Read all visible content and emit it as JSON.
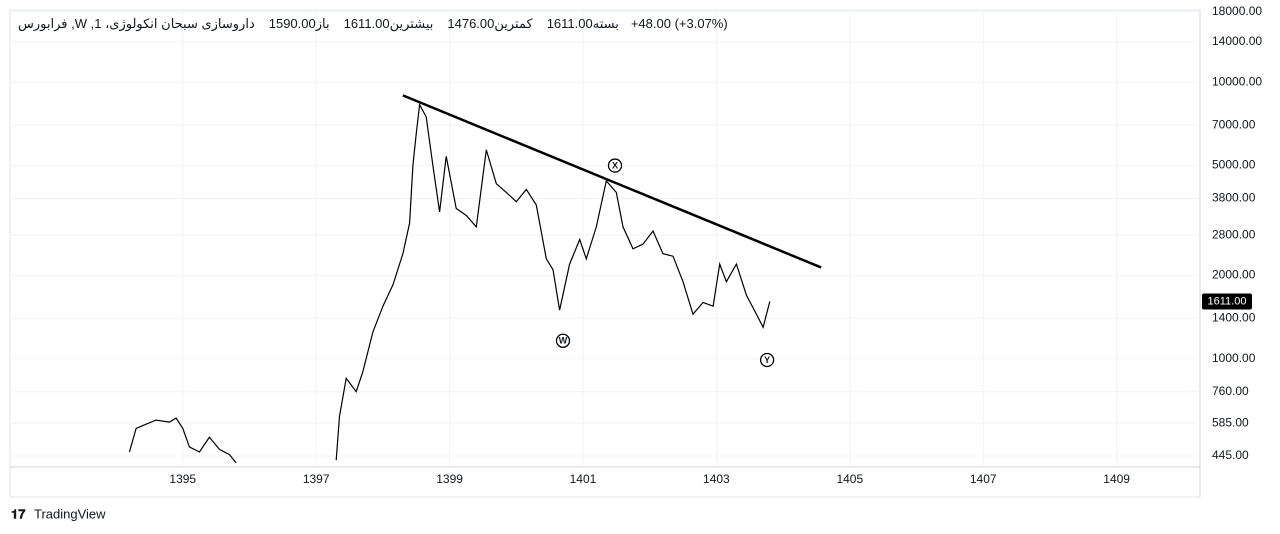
{
  "chart_data": {
    "type": "line",
    "title": "داروسازی سبحان انکولوژی، 1, W, فرابورس",
    "ohlc": [
      {
        "label": "باز",
        "value": "1590.00"
      },
      {
        "label": "بیشترین",
        "value": "1611.00"
      },
      {
        "label": "کمترین",
        "value": "1476.00"
      },
      {
        "label": "بسته",
        "value": "1611.00"
      }
    ],
    "change": "+48.00 (+3.07%)",
    "last_price_label": "1611.00",
    "color": "#000000",
    "x": [
      1394.2,
      1394.3,
      1394.45,
      1394.6,
      1394.8,
      1394.9,
      1395.0,
      1395.1,
      1395.25,
      1395.4,
      1395.55,
      1395.7,
      1395.8,
      1396.5,
      1397.3,
      1397.35,
      1397.45,
      1397.6,
      1397.7,
      1397.85,
      1398.0,
      1398.15,
      1398.3,
      1398.4,
      1398.45,
      1398.5,
      1398.55,
      1398.65,
      1398.75,
      1398.85,
      1398.95,
      1399.1,
      1399.25,
      1399.4,
      1399.55,
      1399.7,
      1399.85,
      1400.0,
      1400.15,
      1400.3,
      1400.45,
      1400.55,
      1400.65,
      1400.8,
      1400.95,
      1401.05,
      1401.2,
      1401.35,
      1401.5,
      1401.6,
      1401.75,
      1401.9,
      1402.05,
      1402.2,
      1402.35,
      1402.5,
      1402.65,
      1402.8,
      1402.95,
      1403.05,
      1403.15,
      1403.3,
      1403.45,
      1403.6,
      1403.7,
      1403.8
    ],
    "values": [
      460,
      560,
      580,
      600,
      590,
      610,
      560,
      480,
      460,
      520,
      470,
      450,
      420,
      null,
      430,
      620,
      850,
      760,
      900,
      1250,
      1550,
      1850,
      2400,
      3100,
      5000,
      6500,
      8300,
      7500,
      5000,
      3400,
      5400,
      3500,
      3300,
      3000,
      5700,
      4300,
      4000,
      3700,
      4100,
      3600,
      2300,
      2100,
      1500,
      2200,
      2700,
      2300,
      3000,
      4400,
      4000,
      3000,
      2500,
      2600,
      2900,
      2400,
      2350,
      1900,
      1450,
      1600,
      1550,
      2200,
      1900,
      2200,
      1700,
      1450,
      1300,
      1611
    ],
    "xlim": [
      1392.41,
      1410.25
    ],
    "xticks": [
      1395,
      1397,
      1399,
      1401,
      1403,
      1405,
      1407,
      1409
    ],
    "ylim": [
      406,
      18270
    ],
    "log_scale": true,
    "grid": true,
    "yticks": [
      {
        "value": 445,
        "label": "445.00"
      },
      {
        "value": 585,
        "label": "585.00"
      },
      {
        "value": 760,
        "label": "760.00"
      },
      {
        "value": 1000,
        "label": "1000.00"
      },
      {
        "value": 1400,
        "label": "1400.00"
      },
      {
        "value": 2000,
        "label": "2000.00"
      },
      {
        "value": 2800,
        "label": "2800.00"
      },
      {
        "value": 3800,
        "label": "3800.00"
      },
      {
        "value": 5000,
        "label": "5000.00"
      },
      {
        "value": 7000,
        "label": "7000.00"
      },
      {
        "value": 10000,
        "label": "10000.00"
      },
      {
        "value": 14000,
        "label": "14000.00"
      },
      {
        "value": 18000,
        "label": "18000.00"
      }
    ],
    "trendline": {
      "x": [
        1398.3,
        1404.57
      ],
      "y": [
        8970,
        2140
      ]
    },
    "annotations": [
      {
        "text": "W",
        "x": 1400.7,
        "y": 1162
      },
      {
        "text": "X",
        "x": 1401.48,
        "y": 5000
      },
      {
        "text": "Y",
        "x": 1403.76,
        "y": 990
      }
    ],
    "footer": "TradingView"
  }
}
